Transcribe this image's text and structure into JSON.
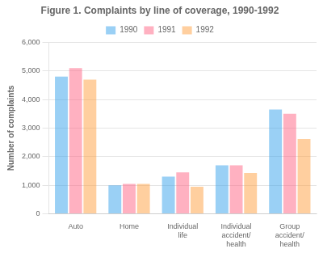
{
  "chart_data": {
    "type": "bar",
    "title": "Figure 1. Complaints by line of coverage, 1990-1992",
    "ylabel": "Number of complaints",
    "categories": [
      "Auto",
      "Home",
      "Individual\nlife",
      "Individual\naccident/\nhealth",
      "Group\naccident/\nhealth"
    ],
    "series": [
      {
        "name": "1990",
        "values": [
          4800,
          1000,
          1300,
          1700,
          3650
        ]
      },
      {
        "name": "1991",
        "values": [
          5100,
          1050,
          1450,
          1700,
          3500
        ]
      },
      {
        "name": "1992",
        "values": [
          4700,
          1050,
          950,
          1430,
          2620
        ]
      }
    ],
    "ylim": [
      0,
      6000
    ],
    "yticks": [
      0,
      {
        "value": 1000,
        "label": "1,000"
      },
      {
        "value": 2000,
        "label": "2,000"
      },
      {
        "value": 3000,
        "label": "3,000"
      },
      {
        "value": 4000,
        "label": "4,000"
      },
      {
        "value": 5000,
        "label": "5,000"
      },
      {
        "value": 6000,
        "label": "6,000"
      }
    ],
    "grid": true,
    "legend": "top"
  }
}
